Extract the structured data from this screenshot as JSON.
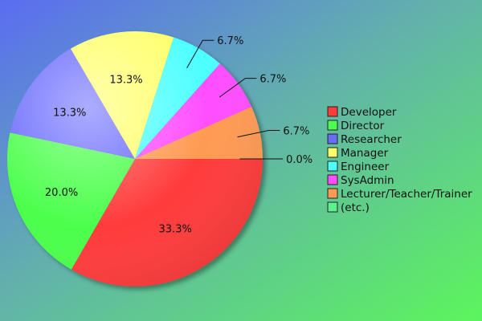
{
  "chart_data": {
    "type": "pie",
    "title": "",
    "legend_position": "right",
    "slices": [
      {
        "name": "Developer",
        "value": 33.3,
        "label": "33.3%",
        "color": "#ff3b3b"
      },
      {
        "name": "Director",
        "value": 20.0,
        "label": "20.0%",
        "color": "#4cff4c"
      },
      {
        "name": "Researcher",
        "value": 13.3,
        "label": "13.3%",
        "color": "#6b6bff"
      },
      {
        "name": "Manager",
        "value": 13.3,
        "label": "13.3%",
        "color": "#ffff6b"
      },
      {
        "name": "Engineer",
        "value": 6.7,
        "label": "6.7%",
        "color": "#4dffff"
      },
      {
        "name": "SysAdmin",
        "value": 6.7,
        "label": "6.7%",
        "color": "#ff4dff"
      },
      {
        "name": "Lecturer/Teacher/Trainer",
        "value": 6.7,
        "label": "6.7%",
        "color": "#ff9a52"
      },
      {
        "name": "(etc.)",
        "value": 0.0,
        "label": "0.0%",
        "color": "#5cf08f"
      }
    ]
  }
}
